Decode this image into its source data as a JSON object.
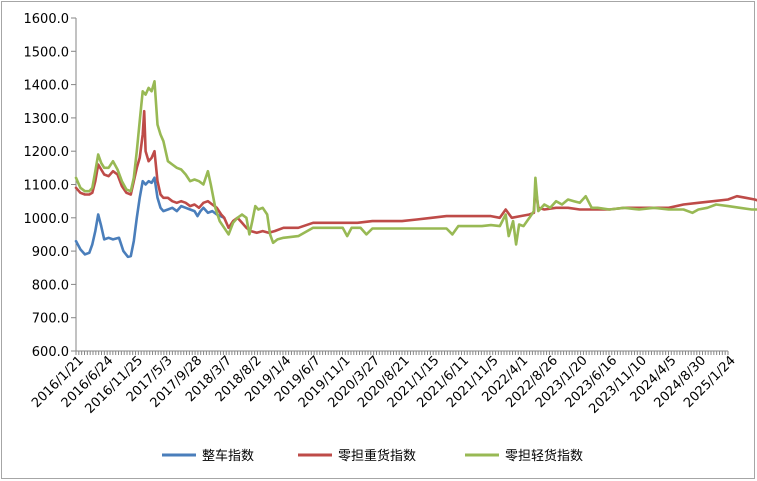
{
  "chart_data": {
    "type": "line",
    "title": "",
    "xlabel": "",
    "ylabel": "",
    "ylim": [
      600,
      1600
    ],
    "y_ticks": [
      "600.0",
      "700.0",
      "800.0",
      "900.0",
      "1000.0",
      "1100.0",
      "1200.0",
      "1300.0",
      "1400.0",
      "1500.0",
      "1600.0"
    ],
    "x_ticks": [
      "2016/1/21",
      "2016/6/24",
      "2016/11/25",
      "2017/5/3",
      "2017/9/28",
      "2018/3/7",
      "2018/8/2",
      "2019/1/4",
      "2019/6/7",
      "2019/11/1",
      "2020/3/27",
      "2020/8/21",
      "2021/1/15",
      "2021/6/11",
      "2021/11/5",
      "2022/4/1",
      "2022/8/26",
      "2023/1/20",
      "2023/6/16",
      "2023/11/10",
      "2024/4/5",
      "2024/8/30",
      "2025/1/24"
    ],
    "grid": false,
    "legend_position": "bottom",
    "series": [
      {
        "name": "整车指数",
        "color": "#4a7ebb",
        "points": [
          [
            0,
            930
          ],
          [
            0.15,
            905
          ],
          [
            0.3,
            890
          ],
          [
            0.45,
            895
          ],
          [
            0.55,
            920
          ],
          [
            0.65,
            960
          ],
          [
            0.75,
            1010
          ],
          [
            0.85,
            975
          ],
          [
            0.95,
            935
          ],
          [
            1.1,
            940
          ],
          [
            1.25,
            935
          ],
          [
            1.45,
            940
          ],
          [
            1.6,
            900
          ],
          [
            1.75,
            883
          ],
          [
            1.85,
            885
          ],
          [
            1.95,
            930
          ],
          [
            2.05,
            1000
          ],
          [
            2.15,
            1060
          ],
          [
            2.25,
            1110
          ],
          [
            2.35,
            1100
          ],
          [
            2.45,
            1110
          ],
          [
            2.55,
            1105
          ],
          [
            2.65,
            1120
          ],
          [
            2.75,
            1060
          ],
          [
            2.85,
            1030
          ],
          [
            2.95,
            1020
          ],
          [
            3.1,
            1025
          ],
          [
            3.25,
            1030
          ],
          [
            3.4,
            1020
          ],
          [
            3.55,
            1035
          ],
          [
            3.7,
            1030
          ],
          [
            3.85,
            1025
          ],
          [
            4.0,
            1020
          ],
          [
            4.1,
            1005
          ],
          [
            4.2,
            1020
          ],
          [
            4.3,
            1030
          ],
          [
            4.45,
            1015
          ],
          [
            4.6,
            1020
          ],
          [
            4.75,
            1010
          ],
          [
            5.0,
            1000
          ]
        ]
      },
      {
        "name": "零担重货指数",
        "color": "#be4b48",
        "points": [
          [
            0,
            1090
          ],
          [
            0.15,
            1075
          ],
          [
            0.3,
            1070
          ],
          [
            0.45,
            1070
          ],
          [
            0.55,
            1075
          ],
          [
            0.65,
            1110
          ],
          [
            0.75,
            1160
          ],
          [
            0.85,
            1145
          ],
          [
            0.95,
            1130
          ],
          [
            1.1,
            1125
          ],
          [
            1.25,
            1140
          ],
          [
            1.4,
            1130
          ],
          [
            1.55,
            1095
          ],
          [
            1.7,
            1075
          ],
          [
            1.85,
            1070
          ],
          [
            1.95,
            1110
          ],
          [
            2.05,
            1150
          ],
          [
            2.15,
            1180
          ],
          [
            2.25,
            1250
          ],
          [
            2.3,
            1320
          ],
          [
            2.35,
            1200
          ],
          [
            2.45,
            1170
          ],
          [
            2.55,
            1180
          ],
          [
            2.65,
            1200
          ],
          [
            2.75,
            1110
          ],
          [
            2.85,
            1070
          ],
          [
            2.95,
            1060
          ],
          [
            3.1,
            1060
          ],
          [
            3.25,
            1050
          ],
          [
            3.4,
            1045
          ],
          [
            3.55,
            1050
          ],
          [
            3.7,
            1045
          ],
          [
            3.85,
            1035
          ],
          [
            4.0,
            1040
          ],
          [
            4.15,
            1030
          ],
          [
            4.3,
            1045
          ],
          [
            4.45,
            1050
          ],
          [
            4.6,
            1040
          ],
          [
            4.75,
            1030
          ],
          [
            4.9,
            1010
          ],
          [
            5.0,
            1000
          ],
          [
            5.15,
            970
          ],
          [
            5.3,
            990
          ],
          [
            5.45,
            1000
          ],
          [
            5.6,
            985
          ],
          [
            5.75,
            970
          ],
          [
            5.9,
            960
          ],
          [
            6.1,
            955
          ],
          [
            6.3,
            960
          ],
          [
            6.5,
            955
          ],
          [
            6.7,
            960
          ],
          [
            7.0,
            970
          ],
          [
            7.5,
            970
          ],
          [
            8.0,
            985
          ],
          [
            8.5,
            985
          ],
          [
            9.0,
            985
          ],
          [
            9.5,
            985
          ],
          [
            10.0,
            990
          ],
          [
            10.5,
            990
          ],
          [
            11.0,
            990
          ],
          [
            11.5,
            995
          ],
          [
            12.0,
            1000
          ],
          [
            12.5,
            1005
          ],
          [
            13.0,
            1005
          ],
          [
            13.5,
            1005
          ],
          [
            14.0,
            1005
          ],
          [
            14.3,
            1000
          ],
          [
            14.5,
            1025
          ],
          [
            14.7,
            1000
          ],
          [
            15.0,
            1005
          ],
          [
            15.3,
            1010
          ],
          [
            15.45,
            1015
          ],
          [
            15.5,
            1095
          ],
          [
            15.6,
            1030
          ],
          [
            15.8,
            1025
          ],
          [
            16.2,
            1030
          ],
          [
            16.6,
            1030
          ],
          [
            17.0,
            1025
          ],
          [
            17.5,
            1025
          ],
          [
            18.0,
            1025
          ],
          [
            18.5,
            1030
          ],
          [
            19.0,
            1030
          ],
          [
            19.5,
            1030
          ],
          [
            20.0,
            1030
          ],
          [
            20.5,
            1040
          ],
          [
            21.0,
            1045
          ],
          [
            21.5,
            1050
          ],
          [
            22.0,
            1055
          ],
          [
            22.3,
            1065
          ],
          [
            22.6,
            1060
          ],
          [
            22.9,
            1055
          ],
          [
            23.0,
            1052
          ]
        ]
      },
      {
        "name": "零担轻货指数",
        "color": "#98b954",
        "points": [
          [
            0,
            1120
          ],
          [
            0.15,
            1090
          ],
          [
            0.3,
            1080
          ],
          [
            0.45,
            1080
          ],
          [
            0.55,
            1090
          ],
          [
            0.65,
            1140
          ],
          [
            0.75,
            1190
          ],
          [
            0.85,
            1165
          ],
          [
            0.95,
            1150
          ],
          [
            1.1,
            1150
          ],
          [
            1.25,
            1170
          ],
          [
            1.4,
            1145
          ],
          [
            1.55,
            1110
          ],
          [
            1.7,
            1085
          ],
          [
            1.85,
            1080
          ],
          [
            1.95,
            1120
          ],
          [
            2.05,
            1200
          ],
          [
            2.15,
            1290
          ],
          [
            2.25,
            1380
          ],
          [
            2.35,
            1370
          ],
          [
            2.45,
            1390
          ],
          [
            2.55,
            1380
          ],
          [
            2.65,
            1410
          ],
          [
            2.75,
            1280
          ],
          [
            2.85,
            1250
          ],
          [
            2.95,
            1230
          ],
          [
            3.1,
            1170
          ],
          [
            3.25,
            1160
          ],
          [
            3.4,
            1150
          ],
          [
            3.55,
            1145
          ],
          [
            3.7,
            1130
          ],
          [
            3.85,
            1110
          ],
          [
            4.0,
            1115
          ],
          [
            4.15,
            1110
          ],
          [
            4.3,
            1100
          ],
          [
            4.45,
            1140
          ],
          [
            4.55,
            1100
          ],
          [
            4.7,
            1030
          ],
          [
            4.85,
            990
          ],
          [
            5.0,
            970
          ],
          [
            5.15,
            950
          ],
          [
            5.3,
            985
          ],
          [
            5.45,
            1000
          ],
          [
            5.6,
            1010
          ],
          [
            5.75,
            1000
          ],
          [
            5.85,
            950
          ],
          [
            5.95,
            990
          ],
          [
            6.05,
            1035
          ],
          [
            6.15,
            1025
          ],
          [
            6.3,
            1030
          ],
          [
            6.45,
            1010
          ],
          [
            6.55,
            950
          ],
          [
            6.65,
            925
          ],
          [
            6.8,
            935
          ],
          [
            7.0,
            940
          ],
          [
            7.5,
            945
          ],
          [
            8.0,
            970
          ],
          [
            8.5,
            970
          ],
          [
            9.0,
            970
          ],
          [
            9.15,
            945
          ],
          [
            9.3,
            970
          ],
          [
            9.6,
            970
          ],
          [
            9.8,
            950
          ],
          [
            10.0,
            968
          ],
          [
            10.5,
            968
          ],
          [
            11.0,
            968
          ],
          [
            11.5,
            968
          ],
          [
            12.0,
            968
          ],
          [
            12.5,
            968
          ],
          [
            12.7,
            950
          ],
          [
            12.9,
            975
          ],
          [
            13.3,
            975
          ],
          [
            13.7,
            975
          ],
          [
            14.0,
            978
          ],
          [
            14.3,
            975
          ],
          [
            14.5,
            1010
          ],
          [
            14.6,
            945
          ],
          [
            14.75,
            990
          ],
          [
            14.85,
            920
          ],
          [
            14.95,
            980
          ],
          [
            15.1,
            975
          ],
          [
            15.3,
            1000
          ],
          [
            15.45,
            1020
          ],
          [
            15.5,
            1120
          ],
          [
            15.6,
            1020
          ],
          [
            15.8,
            1040
          ],
          [
            16.0,
            1030
          ],
          [
            16.2,
            1050
          ],
          [
            16.4,
            1040
          ],
          [
            16.6,
            1055
          ],
          [
            16.8,
            1050
          ],
          [
            17.0,
            1045
          ],
          [
            17.2,
            1065
          ],
          [
            17.4,
            1030
          ],
          [
            17.6,
            1030
          ],
          [
            18.0,
            1025
          ],
          [
            18.5,
            1030
          ],
          [
            19.0,
            1025
          ],
          [
            19.5,
            1030
          ],
          [
            20.0,
            1025
          ],
          [
            20.5,
            1025
          ],
          [
            20.8,
            1015
          ],
          [
            21.0,
            1025
          ],
          [
            21.3,
            1030
          ],
          [
            21.6,
            1040
          ],
          [
            22.0,
            1035
          ],
          [
            22.4,
            1030
          ],
          [
            22.8,
            1025
          ],
          [
            23.0,
            1025
          ]
        ]
      }
    ]
  }
}
